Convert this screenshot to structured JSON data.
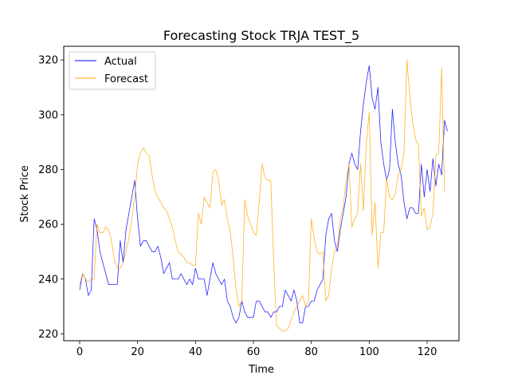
{
  "chart_data": {
    "type": "line",
    "title": "Forecasting Stock TRJA TEST_5",
    "xlabel": "Time",
    "ylabel": "Stock Price",
    "xlim": [
      -5.5,
      131
    ],
    "ylim": [
      217.5,
      325
    ],
    "xticks": [
      0,
      20,
      40,
      60,
      80,
      100,
      120
    ],
    "yticks": [
      220,
      240,
      260,
      280,
      300,
      320
    ],
    "grid": false,
    "legend_position": "top-left",
    "series": [
      {
        "name": "Actual",
        "color": "#0000ff",
        "values": [
          236,
          242,
          240,
          234,
          236,
          262,
          258,
          250,
          246,
          242,
          238,
          238,
          238,
          238,
          254,
          246,
          258,
          264,
          270,
          276,
          262,
          252,
          254,
          254,
          252,
          250,
          250,
          252,
          248,
          242,
          244,
          246,
          240,
          240,
          240,
          242,
          240,
          238,
          240,
          238,
          244,
          240,
          240,
          240,
          234,
          240,
          246,
          242,
          240,
          238,
          240,
          232,
          230,
          226,
          224,
          226,
          232,
          228,
          226,
          226,
          226,
          232,
          232,
          230,
          228,
          228,
          226,
          228,
          228,
          230,
          230,
          236,
          234,
          232,
          236,
          232,
          224,
          224,
          230,
          230,
          232,
          232,
          236,
          238,
          240,
          256,
          262,
          264,
          254,
          250,
          258,
          264,
          270,
          282,
          286,
          282,
          280,
          294,
          304,
          312,
          318,
          306,
          302,
          310,
          290,
          282,
          276,
          280,
          302,
          290,
          282,
          278,
          268,
          262,
          266,
          266,
          264,
          264,
          282,
          270,
          280,
          272,
          284,
          274,
          282,
          278,
          298,
          294
        ]
      },
      {
        "name": "Forecast",
        "color": "#ffa500",
        "values": [
          238,
          242,
          240,
          239,
          240,
          240,
          260,
          257,
          257,
          259,
          258,
          254,
          247,
          244,
          244,
          246,
          250,
          255,
          262,
          270,
          282,
          286,
          288,
          286,
          285,
          278,
          272,
          270,
          268,
          266,
          265,
          262,
          259,
          254,
          250,
          249,
          248,
          246,
          246,
          245,
          245,
          264,
          260,
          270,
          268,
          266,
          279,
          280,
          276,
          267,
          269,
          262,
          257,
          248,
          236,
          230,
          232,
          269,
          263,
          260,
          257,
          256,
          268,
          282,
          277,
          276,
          276,
          246,
          223,
          222,
          221,
          221,
          222,
          225,
          228,
          230,
          232,
          234,
          230,
          232,
          262,
          255,
          250,
          249,
          250,
          232,
          234,
          244,
          250,
          252,
          262,
          266,
          276,
          282,
          259,
          262,
          264,
          282,
          265,
          290,
          301,
          256,
          268,
          244,
          257,
          257,
          277,
          270,
          269,
          271,
          278,
          280,
          286,
          320,
          307,
          297,
          291,
          289,
          263,
          266,
          258,
          259,
          264,
          285,
          286,
          317,
          272
        ]
      }
    ]
  }
}
